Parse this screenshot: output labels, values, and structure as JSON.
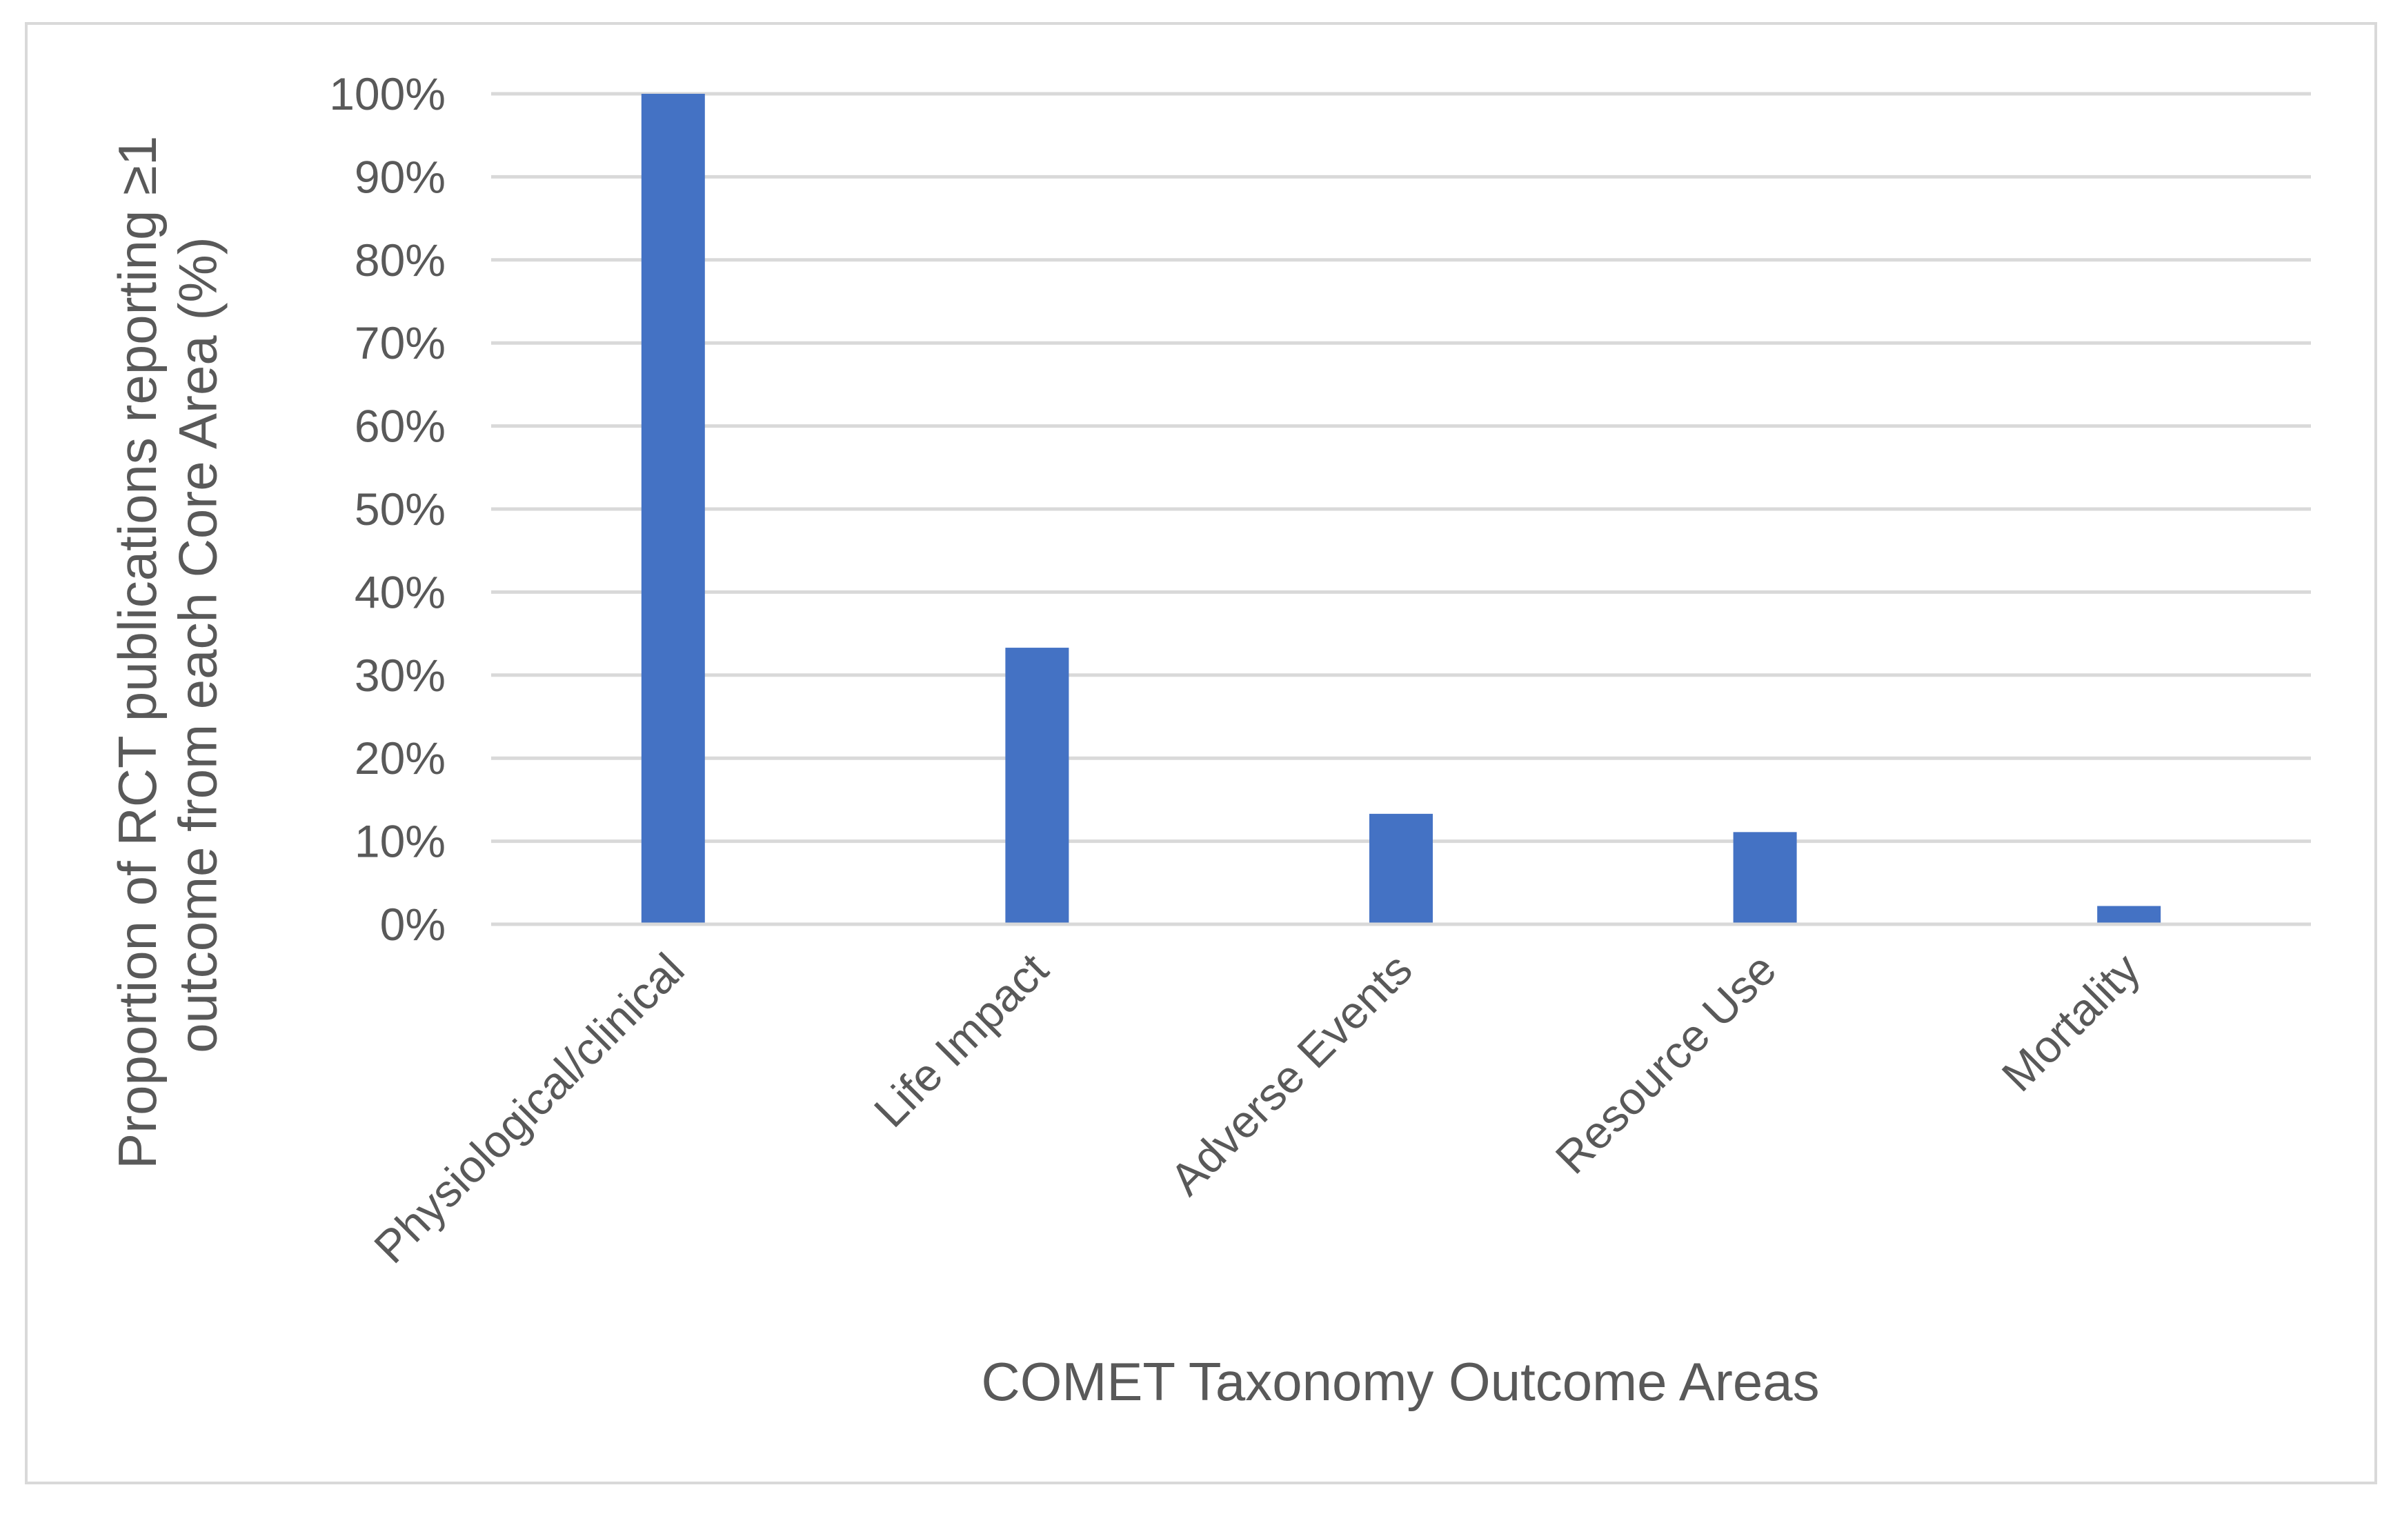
{
  "chart_data": {
    "type": "bar",
    "title": "",
    "categories": [
      "Physiological/clinical",
      "Life Impact",
      "Adverse Events",
      "Resource Use",
      "Mortality"
    ],
    "values": [
      100,
      33.3,
      13.3,
      11.1,
      2.2
    ],
    "value_unit": "%",
    "xlabel": "COMET Taxonomy Outcome Areas",
    "ylabel_lines": [
      "Proportion of RCT publications reporting ≥1",
      "outcome from each Core Area (%)"
    ],
    "ylim": [
      0,
      100
    ],
    "yticks": [
      0,
      10,
      20,
      30,
      40,
      50,
      60,
      70,
      80,
      90,
      100
    ],
    "ytick_labels": [
      "0%",
      "10%",
      "20%",
      "30%",
      "40%",
      "50%",
      "60%",
      "70%",
      "80%",
      "90%",
      "100%"
    ],
    "grid": true,
    "legend": "none",
    "bar_color": "#4472c4",
    "grid_color": "#d9d9d9",
    "text_color": "#595959"
  }
}
